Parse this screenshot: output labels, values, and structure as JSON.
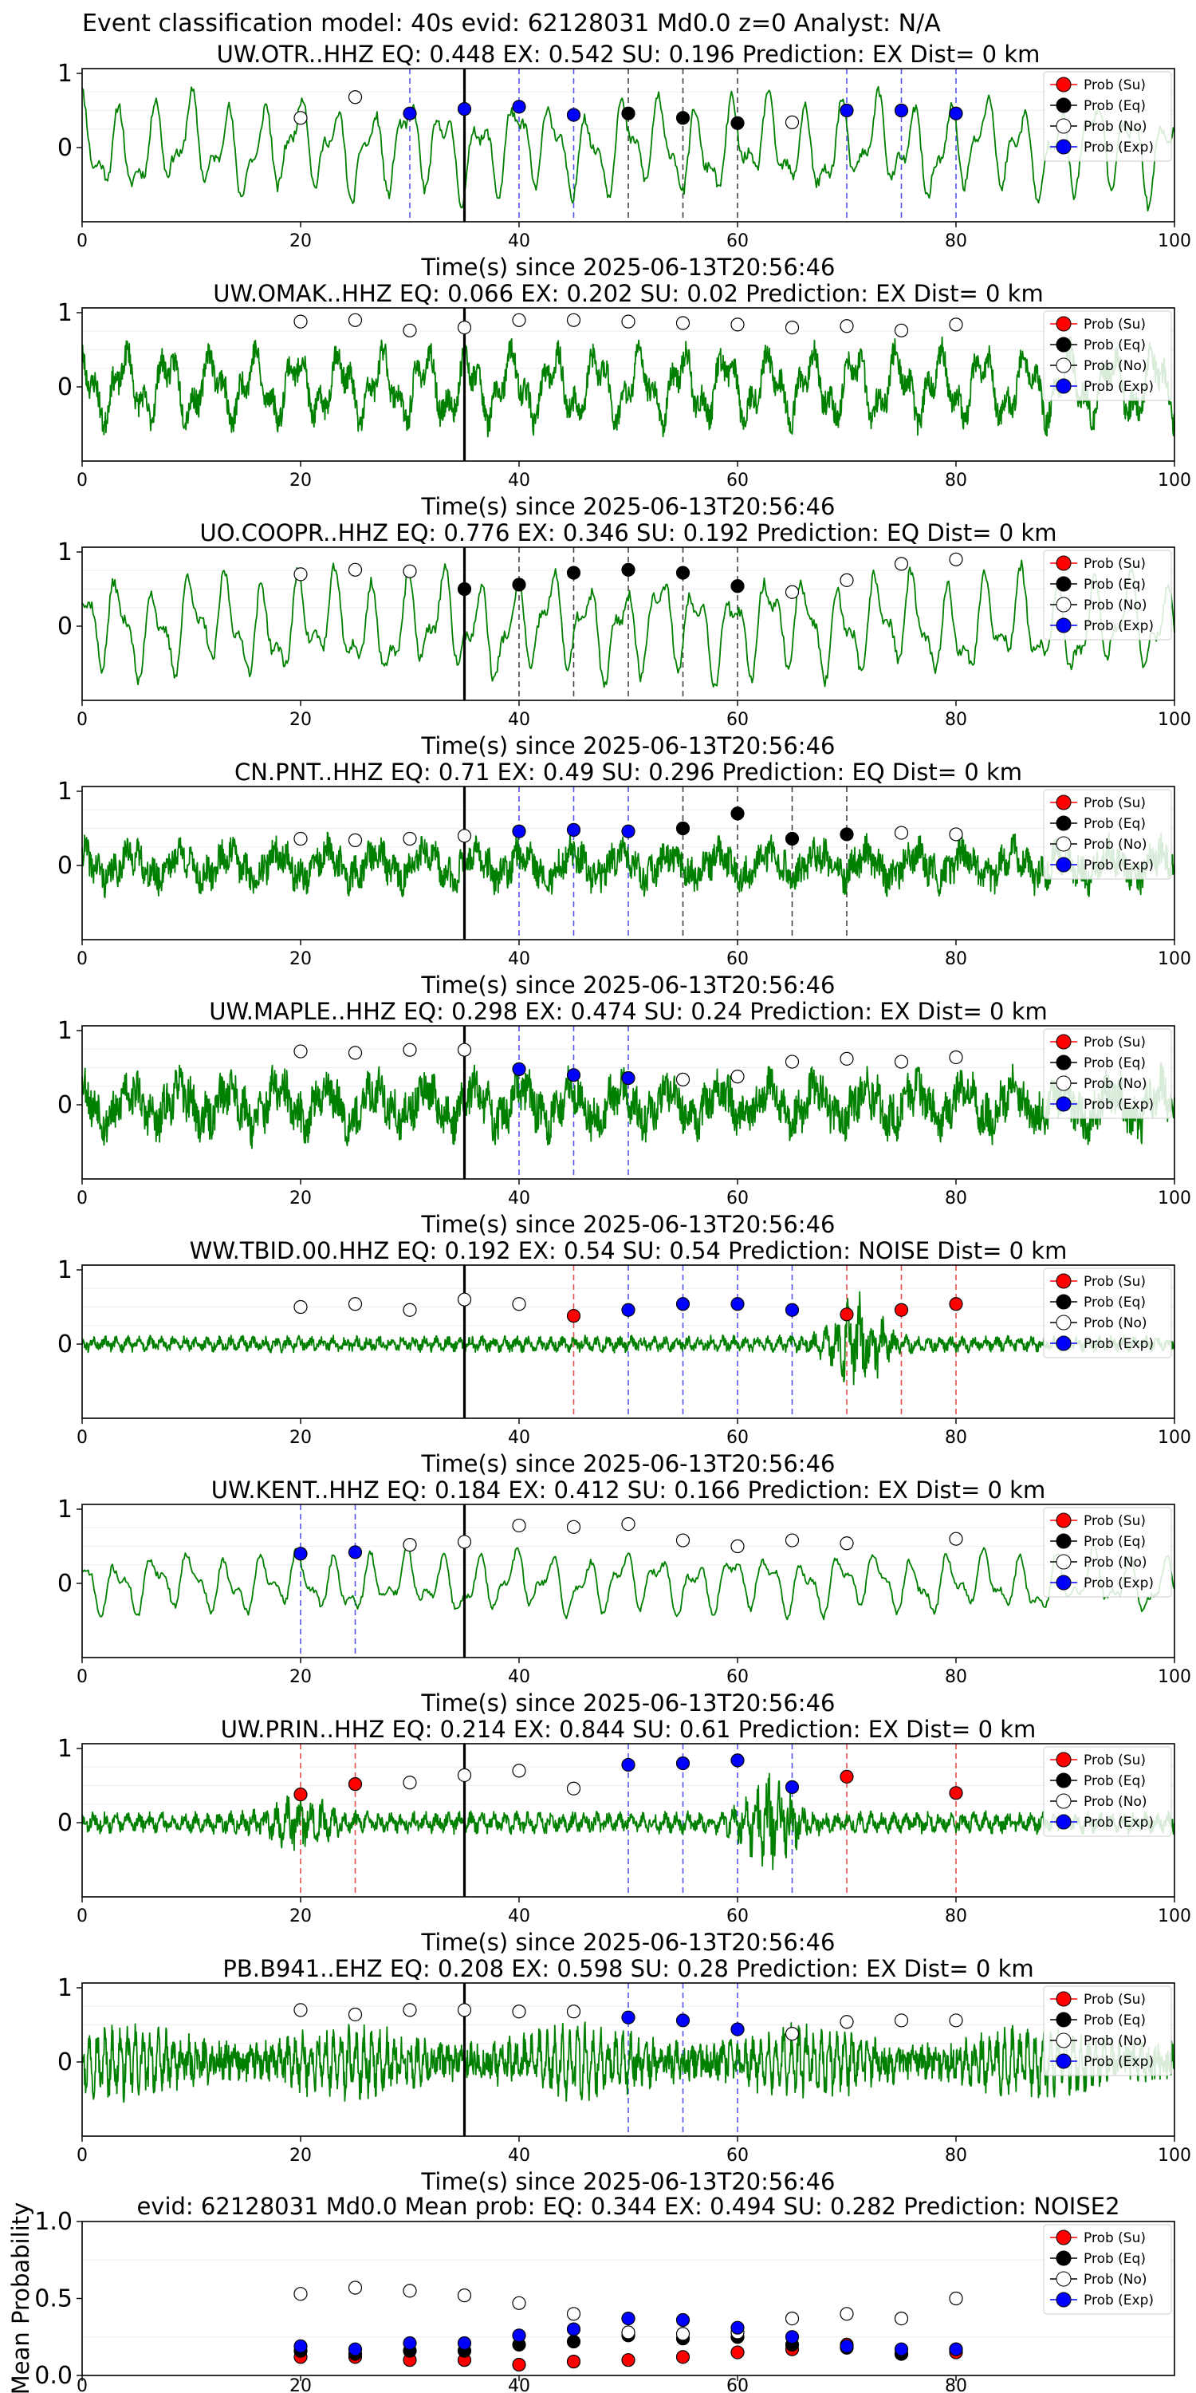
{
  "suptitle": "Event classification model: 40s evid: 62128031 Md0.0 z=0 Analyst: N/A",
  "legend_labels": [
    "Prob (Su)",
    "Prob (Eq)",
    "Prob (No)",
    "Prob (Exp)"
  ],
  "colors": {
    "waveform": "#008000",
    "su": "#ff0000",
    "eq": "#000000",
    "no": "#ffffff",
    "exp": "#0000ff"
  },
  "chart_data": [
    {
      "type": "line",
      "title": "UW.OTR..HHZ   EQ: 0.448  EX: 0.542  SU: 0.196   Prediction: EX    Dist= 0 km",
      "xlabel": "Time(s) since 2025-06-13T20:56:46",
      "xlim": [
        0,
        100
      ],
      "xticks": [
        "0",
        "20",
        "40",
        "60",
        "80",
        "100"
      ],
      "ylim": [
        -1,
        1
      ],
      "yticks": [
        "1",
        "0"
      ],
      "pick_time": 35,
      "legend": "top-right",
      "waveform": {
        "character": "lowfreq",
        "amplitude": 0.8,
        "seed": 11
      },
      "probabilities": [
        {
          "t": 20,
          "cls": "no",
          "p": 0.4
        },
        {
          "t": 25,
          "cls": "no",
          "p": 0.68
        },
        {
          "t": 30,
          "cls": "exp",
          "p": 0.46
        },
        {
          "t": 35,
          "cls": "exp",
          "p": 0.52
        },
        {
          "t": 40,
          "cls": "exp",
          "p": 0.55
        },
        {
          "t": 45,
          "cls": "exp",
          "p": 0.44
        },
        {
          "t": 50,
          "cls": "eq",
          "p": 0.46
        },
        {
          "t": 55,
          "cls": "eq",
          "p": 0.4
        },
        {
          "t": 60,
          "cls": "eq",
          "p": 0.33
        },
        {
          "t": 65,
          "cls": "no",
          "p": 0.34
        },
        {
          "t": 70,
          "cls": "exp",
          "p": 0.5
        },
        {
          "t": 75,
          "cls": "exp",
          "p": 0.5
        },
        {
          "t": 80,
          "cls": "exp",
          "p": 0.46
        }
      ]
    },
    {
      "type": "line",
      "title": "UW.OMAK..HHZ   EQ: 0.066  EX: 0.202  SU: 0.02   Prediction: EX    Dist= 0 km",
      "xlabel": "Time(s) since 2025-06-13T20:56:46",
      "xlim": [
        0,
        100
      ],
      "xticks": [
        "0",
        "20",
        "40",
        "60",
        "80",
        "100"
      ],
      "ylim": [
        -1,
        1
      ],
      "yticks": [
        "1",
        "0"
      ],
      "pick_time": 35,
      "legend": "top-right",
      "waveform": {
        "character": "mixed",
        "amplitude": 0.75,
        "seed": 23
      },
      "probabilities": [
        {
          "t": 20,
          "cls": "no",
          "p": 0.88
        },
        {
          "t": 25,
          "cls": "no",
          "p": 0.9
        },
        {
          "t": 30,
          "cls": "no",
          "p": 0.76
        },
        {
          "t": 35,
          "cls": "no",
          "p": 0.8
        },
        {
          "t": 40,
          "cls": "no",
          "p": 0.9
        },
        {
          "t": 45,
          "cls": "no",
          "p": 0.9
        },
        {
          "t": 50,
          "cls": "no",
          "p": 0.88
        },
        {
          "t": 55,
          "cls": "no",
          "p": 0.86
        },
        {
          "t": 60,
          "cls": "no",
          "p": 0.84
        },
        {
          "t": 65,
          "cls": "no",
          "p": 0.8
        },
        {
          "t": 70,
          "cls": "no",
          "p": 0.82
        },
        {
          "t": 75,
          "cls": "no",
          "p": 0.76
        },
        {
          "t": 80,
          "cls": "no",
          "p": 0.84
        }
      ]
    },
    {
      "type": "line",
      "title": "UO.COOPR..HHZ   EQ: 0.776  EX: 0.346  SU: 0.192   Prediction: EQ    Dist= 0 km",
      "xlabel": "Time(s) since 2025-06-13T20:56:46",
      "xlim": [
        0,
        100
      ],
      "xticks": [
        "0",
        "20",
        "40",
        "60",
        "80",
        "100"
      ],
      "ylim": [
        -1,
        1
      ],
      "yticks": [
        "1",
        "0"
      ],
      "pick_time": 35,
      "legend": "top-right",
      "waveform": {
        "character": "lowfreq",
        "amplitude": 0.85,
        "seed": 37
      },
      "probabilities": [
        {
          "t": 20,
          "cls": "no",
          "p": 0.7
        },
        {
          "t": 25,
          "cls": "no",
          "p": 0.76
        },
        {
          "t": 30,
          "cls": "no",
          "p": 0.74
        },
        {
          "t": 35,
          "cls": "eq",
          "p": 0.5
        },
        {
          "t": 40,
          "cls": "eq",
          "p": 0.56
        },
        {
          "t": 45,
          "cls": "eq",
          "p": 0.72
        },
        {
          "t": 50,
          "cls": "eq",
          "p": 0.76
        },
        {
          "t": 55,
          "cls": "eq",
          "p": 0.72
        },
        {
          "t": 60,
          "cls": "eq",
          "p": 0.54
        },
        {
          "t": 65,
          "cls": "no",
          "p": 0.46
        },
        {
          "t": 70,
          "cls": "no",
          "p": 0.62
        },
        {
          "t": 75,
          "cls": "no",
          "p": 0.84
        },
        {
          "t": 80,
          "cls": "no",
          "p": 0.9
        }
      ]
    },
    {
      "type": "line",
      "title": "CN.PNT..HHZ   EQ: 0.71  EX: 0.49  SU: 0.296   Prediction: EQ    Dist= 0 km",
      "xlabel": "Time(s) since 2025-06-13T20:56:46",
      "xlim": [
        0,
        100
      ],
      "xticks": [
        "0",
        "20",
        "40",
        "60",
        "80",
        "100"
      ],
      "ylim": [
        -1,
        1
      ],
      "yticks": [
        "1",
        "0"
      ],
      "pick_time": 35,
      "legend": "top-right",
      "waveform": {
        "character": "noisy",
        "amplitude": 0.45,
        "seed": 41
      },
      "probabilities": [
        {
          "t": 20,
          "cls": "no",
          "p": 0.36
        },
        {
          "t": 25,
          "cls": "no",
          "p": 0.34
        },
        {
          "t": 30,
          "cls": "no",
          "p": 0.36
        },
        {
          "t": 35,
          "cls": "no",
          "p": 0.4
        },
        {
          "t": 40,
          "cls": "exp",
          "p": 0.46
        },
        {
          "t": 45,
          "cls": "exp",
          "p": 0.48
        },
        {
          "t": 50,
          "cls": "exp",
          "p": 0.46
        },
        {
          "t": 55,
          "cls": "eq",
          "p": 0.5
        },
        {
          "t": 60,
          "cls": "eq",
          "p": 0.7
        },
        {
          "t": 65,
          "cls": "eq",
          "p": 0.36
        },
        {
          "t": 70,
          "cls": "eq",
          "p": 0.42
        },
        {
          "t": 75,
          "cls": "no",
          "p": 0.44
        },
        {
          "t": 80,
          "cls": "no",
          "p": 0.42
        }
      ]
    },
    {
      "type": "line",
      "title": "UW.MAPLE..HHZ   EQ: 0.298  EX: 0.474  SU: 0.24   Prediction: EX    Dist= 0 km",
      "xlabel": "Time(s) since 2025-06-13T20:56:46",
      "xlim": [
        0,
        100
      ],
      "xticks": [
        "0",
        "20",
        "40",
        "60",
        "80",
        "100"
      ],
      "ylim": [
        -1,
        1
      ],
      "yticks": [
        "1",
        "0"
      ],
      "pick_time": 35,
      "legend": "top-right",
      "waveform": {
        "character": "noisy",
        "amplitude": 0.6,
        "seed": 53
      },
      "probabilities": [
        {
          "t": 20,
          "cls": "no",
          "p": 0.72
        },
        {
          "t": 25,
          "cls": "no",
          "p": 0.7
        },
        {
          "t": 30,
          "cls": "no",
          "p": 0.74
        },
        {
          "t": 35,
          "cls": "no",
          "p": 0.74
        },
        {
          "t": 40,
          "cls": "exp",
          "p": 0.48
        },
        {
          "t": 45,
          "cls": "exp",
          "p": 0.4
        },
        {
          "t": 50,
          "cls": "exp",
          "p": 0.36
        },
        {
          "t": 55,
          "cls": "no",
          "p": 0.34
        },
        {
          "t": 60,
          "cls": "no",
          "p": 0.38
        },
        {
          "t": 65,
          "cls": "no",
          "p": 0.58
        },
        {
          "t": 70,
          "cls": "no",
          "p": 0.62
        },
        {
          "t": 75,
          "cls": "no",
          "p": 0.58
        },
        {
          "t": 80,
          "cls": "no",
          "p": 0.64
        }
      ]
    },
    {
      "type": "line",
      "title": "WW.TBID.00.HHZ   EQ: 0.192  EX: 0.54  SU: 0.54   Prediction: NOISE    Dist= 0 km",
      "xlabel": "Time(s) since 2025-06-13T20:56:46",
      "xlim": [
        0,
        100
      ],
      "xticks": [
        "0",
        "20",
        "40",
        "60",
        "80",
        "100"
      ],
      "ylim": [
        -1,
        1
      ],
      "yticks": [
        "1",
        "0"
      ],
      "pick_time": 35,
      "legend": "top-right",
      "waveform": {
        "character": "burst",
        "amplitude": 0.15,
        "seed": 61,
        "burst_at": 71,
        "burst_amp": 0.9
      },
      "probabilities": [
        {
          "t": 20,
          "cls": "no",
          "p": 0.5
        },
        {
          "t": 25,
          "cls": "no",
          "p": 0.54
        },
        {
          "t": 30,
          "cls": "no",
          "p": 0.46
        },
        {
          "t": 35,
          "cls": "no",
          "p": 0.6
        },
        {
          "t": 40,
          "cls": "no",
          "p": 0.54
        },
        {
          "t": 45,
          "cls": "su",
          "p": 0.38
        },
        {
          "t": 50,
          "cls": "exp",
          "p": 0.46
        },
        {
          "t": 55,
          "cls": "exp",
          "p": 0.54
        },
        {
          "t": 60,
          "cls": "exp",
          "p": 0.54
        },
        {
          "t": 65,
          "cls": "exp",
          "p": 0.46
        },
        {
          "t": 70,
          "cls": "su",
          "p": 0.4
        },
        {
          "t": 75,
          "cls": "su",
          "p": 0.46
        },
        {
          "t": 80,
          "cls": "su",
          "p": 0.54
        }
      ]
    },
    {
      "type": "line",
      "title": "UW.KENT..HHZ   EQ: 0.184  EX: 0.412  SU: 0.166   Prediction: EX    Dist= 0 km",
      "xlabel": "Time(s) since 2025-06-13T20:56:46",
      "xlim": [
        0,
        100
      ],
      "xticks": [
        "0",
        "20",
        "40",
        "60",
        "80",
        "100"
      ],
      "ylim": [
        -1,
        1
      ],
      "yticks": [
        "1",
        "0"
      ],
      "pick_time": 35,
      "legend": "top-right",
      "waveform": {
        "character": "lowfreq",
        "amplitude": 0.5,
        "seed": 71
      },
      "probabilities": [
        {
          "t": 20,
          "cls": "exp",
          "p": 0.4
        },
        {
          "t": 25,
          "cls": "exp",
          "p": 0.42
        },
        {
          "t": 30,
          "cls": "no",
          "p": 0.52
        },
        {
          "t": 35,
          "cls": "no",
          "p": 0.56
        },
        {
          "t": 40,
          "cls": "no",
          "p": 0.78
        },
        {
          "t": 45,
          "cls": "no",
          "p": 0.76
        },
        {
          "t": 50,
          "cls": "no",
          "p": 0.8
        },
        {
          "t": 55,
          "cls": "no",
          "p": 0.58
        },
        {
          "t": 60,
          "cls": "no",
          "p": 0.5
        },
        {
          "t": 65,
          "cls": "no",
          "p": 0.58
        },
        {
          "t": 70,
          "cls": "no",
          "p": 0.54
        },
        {
          "t": 80,
          "cls": "no",
          "p": 0.6
        }
      ]
    },
    {
      "type": "line",
      "title": "UW.PRIN..HHZ   EQ: 0.214  EX: 0.844  SU: 0.61   Prediction: EX    Dist= 0 km",
      "xlabel": "Time(s) since 2025-06-13T20:56:46",
      "xlim": [
        0,
        100
      ],
      "xticks": [
        "0",
        "20",
        "40",
        "60",
        "80",
        "100"
      ],
      "ylim": [
        -1,
        1
      ],
      "yticks": [
        "1",
        "0"
      ],
      "pick_time": 35,
      "legend": "top-right",
      "waveform": {
        "character": "burst",
        "amplitude": 0.2,
        "seed": 83,
        "burst_at": 63,
        "burst_amp": 0.9,
        "burst2_at": 20,
        "burst2_amp": 0.6
      },
      "probabilities": [
        {
          "t": 20,
          "cls": "su",
          "p": 0.38
        },
        {
          "t": 25,
          "cls": "su",
          "p": 0.52
        },
        {
          "t": 30,
          "cls": "no",
          "p": 0.54
        },
        {
          "t": 35,
          "cls": "no",
          "p": 0.64
        },
        {
          "t": 40,
          "cls": "no",
          "p": 0.7
        },
        {
          "t": 45,
          "cls": "no",
          "p": 0.46
        },
        {
          "t": 50,
          "cls": "exp",
          "p": 0.78
        },
        {
          "t": 55,
          "cls": "exp",
          "p": 0.8
        },
        {
          "t": 60,
          "cls": "exp",
          "p": 0.84
        },
        {
          "t": 65,
          "cls": "exp",
          "p": 0.48
        },
        {
          "t": 70,
          "cls": "su",
          "p": 0.62
        },
        {
          "t": 80,
          "cls": "su",
          "p": 0.4
        }
      ]
    },
    {
      "type": "line",
      "title": "PB.B941..EHZ   EQ: 0.208  EX: 0.598  SU: 0.28   Prediction: EX    Dist= 0 km",
      "xlabel": "Time(s) since 2025-06-13T20:56:46",
      "xlim": [
        0,
        100
      ],
      "xticks": [
        "0",
        "20",
        "40",
        "60",
        "80",
        "100"
      ],
      "ylim": [
        -1,
        1
      ],
      "yticks": [
        "1",
        "0"
      ],
      "pick_time": 35,
      "legend": "top-right",
      "waveform": {
        "character": "dense",
        "amplitude": 0.55,
        "seed": 97
      },
      "probabilities": [
        {
          "t": 20,
          "cls": "no",
          "p": 0.7
        },
        {
          "t": 25,
          "cls": "no",
          "p": 0.64
        },
        {
          "t": 30,
          "cls": "no",
          "p": 0.7
        },
        {
          "t": 35,
          "cls": "no",
          "p": 0.7
        },
        {
          "t": 40,
          "cls": "no",
          "p": 0.68
        },
        {
          "t": 45,
          "cls": "no",
          "p": 0.68
        },
        {
          "t": 50,
          "cls": "exp",
          "p": 0.6
        },
        {
          "t": 55,
          "cls": "exp",
          "p": 0.56
        },
        {
          "t": 60,
          "cls": "exp",
          "p": 0.44
        },
        {
          "t": 65,
          "cls": "no",
          "p": 0.38
        },
        {
          "t": 70,
          "cls": "no",
          "p": 0.54
        },
        {
          "t": 75,
          "cls": "no",
          "p": 0.56
        },
        {
          "t": 80,
          "cls": "no",
          "p": 0.56
        }
      ]
    },
    {
      "type": "scatter",
      "title": "evid: 62128031  Md0.0   Mean prob:    EQ: 0.344  EX: 0.494  SU: 0.282   Prediction: NOISE2",
      "xlabel": "",
      "ylabel": "Mean Probability",
      "xlim": [
        0,
        100
      ],
      "xticks": [
        "0",
        "20",
        "40",
        "60",
        "80"
      ],
      "ylim": [
        0,
        1
      ],
      "yticks": [
        "1.0",
        "0.5",
        "0.0"
      ],
      "legend": "top-right",
      "series": [
        {
          "name": "Prob (Su)",
          "cls": "su",
          "x": [
            20,
            25,
            30,
            35,
            40,
            45,
            50,
            55,
            60,
            65,
            70,
            75,
            80
          ],
          "y": [
            0.12,
            0.12,
            0.1,
            0.1,
            0.07,
            0.09,
            0.1,
            0.12,
            0.15,
            0.17,
            0.2,
            0.14,
            0.15
          ]
        },
        {
          "name": "Prob (Eq)",
          "cls": "eq",
          "x": [
            20,
            25,
            30,
            35,
            40,
            45,
            50,
            55,
            60,
            65,
            70,
            75,
            80
          ],
          "y": [
            0.16,
            0.14,
            0.16,
            0.16,
            0.2,
            0.22,
            0.26,
            0.24,
            0.25,
            0.2,
            0.18,
            0.14,
            0.17
          ]
        },
        {
          "name": "Prob (No)",
          "cls": "no",
          "x": [
            20,
            25,
            30,
            35,
            40,
            45,
            50,
            55,
            60,
            65,
            70,
            75,
            80
          ],
          "y": [
            0.53,
            0.57,
            0.55,
            0.52,
            0.47,
            0.4,
            0.28,
            0.27,
            0.28,
            0.37,
            0.4,
            0.37,
            0.5
          ]
        },
        {
          "name": "Prob (Exp)",
          "cls": "exp",
          "x": [
            20,
            25,
            30,
            35,
            40,
            45,
            50,
            55,
            60,
            65,
            70,
            75,
            80
          ],
          "y": [
            0.19,
            0.17,
            0.21,
            0.21,
            0.26,
            0.3,
            0.37,
            0.36,
            0.31,
            0.25,
            0.19,
            0.17,
            0.17
          ]
        }
      ]
    }
  ]
}
